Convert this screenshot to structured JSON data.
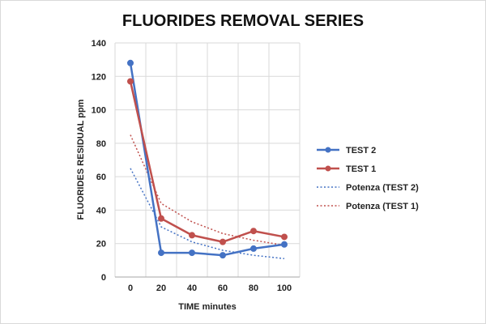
{
  "chart_data": {
    "type": "line",
    "title": "FLUORIDES REMOVAL SERIES",
    "xlabel": "TIME minutes",
    "ylabel": "FLUORIDES RESIDUAL ppm",
    "x": [
      0,
      20,
      40,
      60,
      80,
      100
    ],
    "xticks": [
      "0",
      "20",
      "40",
      "60",
      "80",
      "100"
    ],
    "yticks": [
      "0",
      "20",
      "40",
      "60",
      "80",
      "100",
      "120",
      "140"
    ],
    "ylim": [
      0,
      140
    ],
    "grid": true,
    "legend_position": "right",
    "series": [
      {
        "name": "TEST 2",
        "values": [
          128,
          14.5,
          14.5,
          13,
          17,
          19.5
        ],
        "color": "#4472C4",
        "style": "solid-markers"
      },
      {
        "name": "TEST 1",
        "values": [
          117,
          35,
          25,
          21,
          27.5,
          24
        ],
        "color": "#C0504D",
        "style": "solid-markers"
      },
      {
        "name": "Potenza (TEST 2)",
        "values": [
          65,
          30,
          21,
          16,
          13,
          11
        ],
        "color": "#4472C4",
        "style": "dotted"
      },
      {
        "name": "Potenza (TEST 1)",
        "values": [
          85,
          44,
          33,
          26,
          22,
          19
        ],
        "color": "#C0504D",
        "style": "dotted"
      }
    ]
  }
}
